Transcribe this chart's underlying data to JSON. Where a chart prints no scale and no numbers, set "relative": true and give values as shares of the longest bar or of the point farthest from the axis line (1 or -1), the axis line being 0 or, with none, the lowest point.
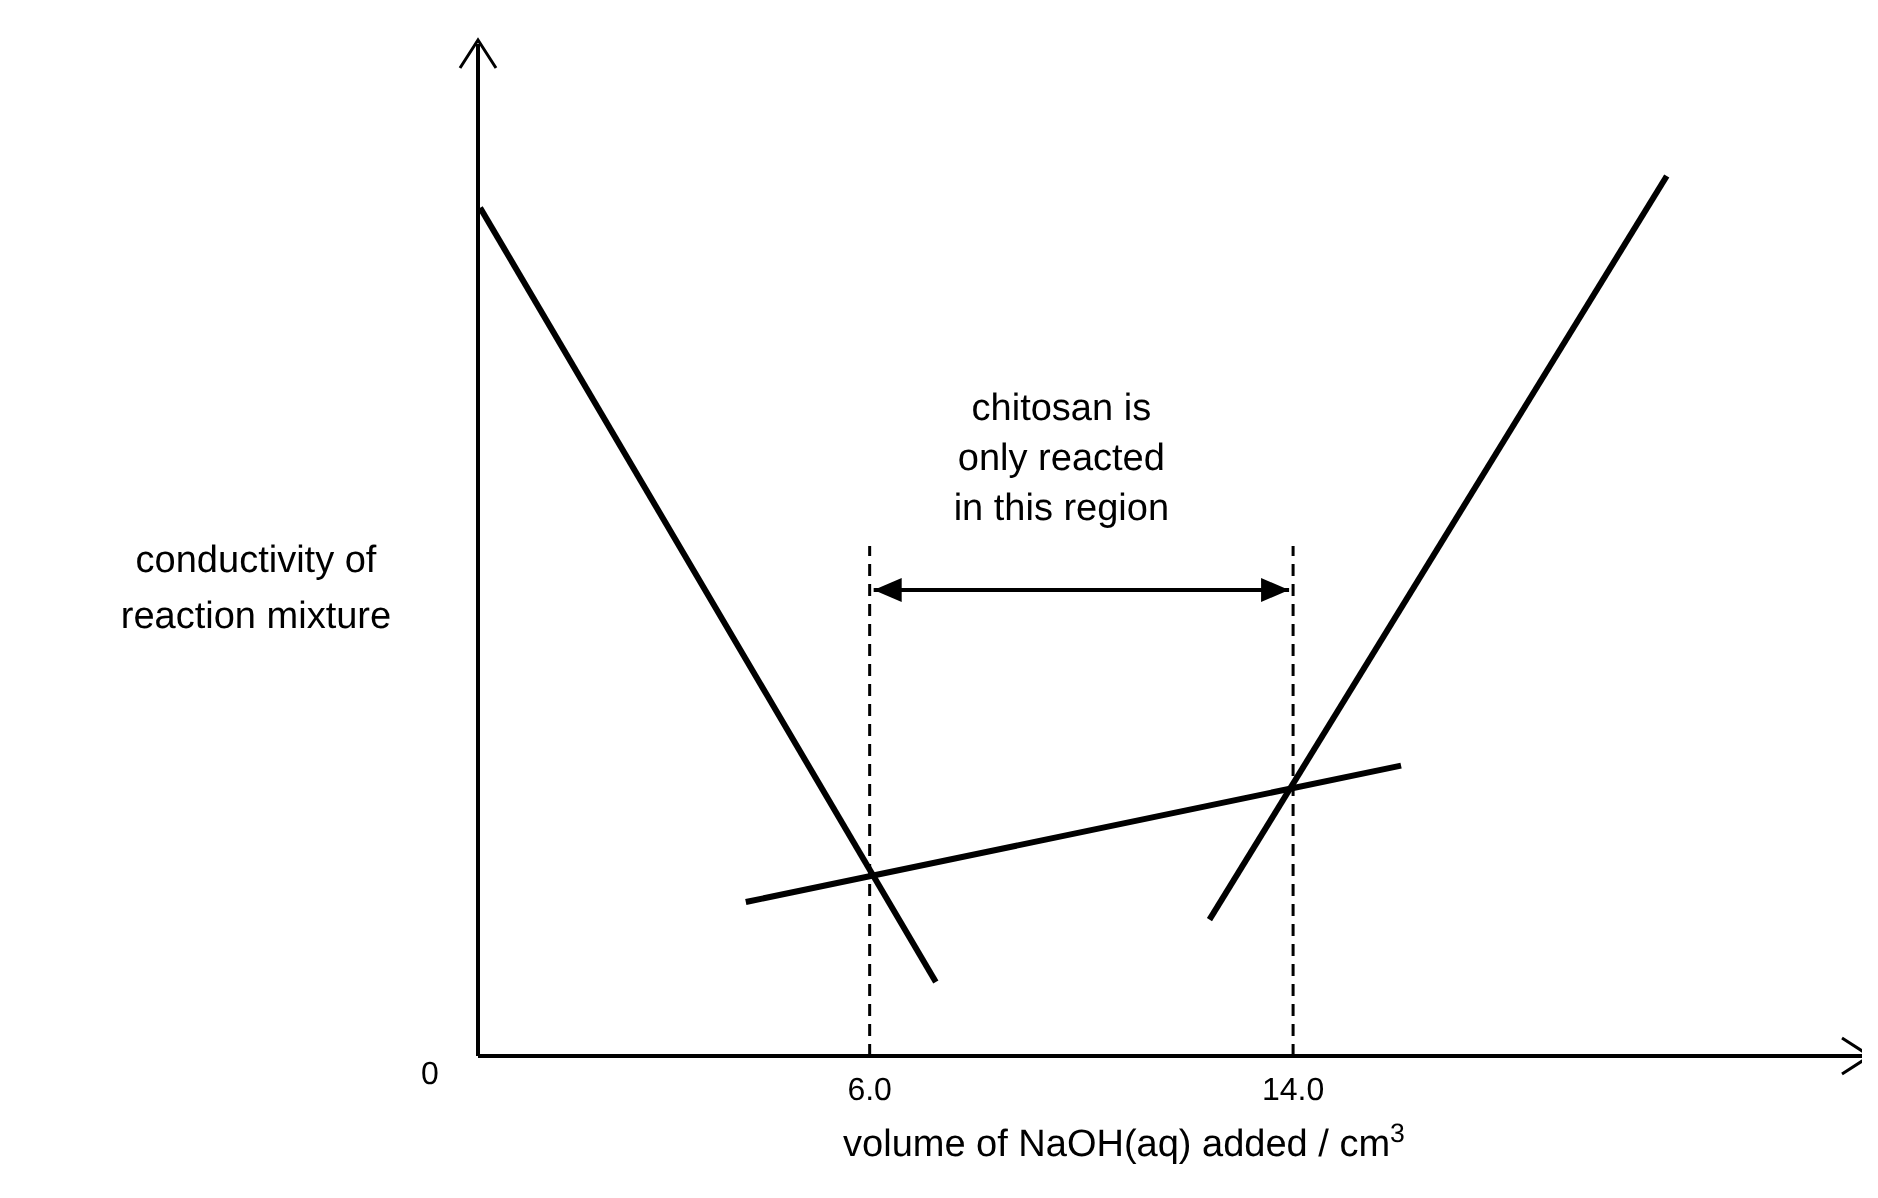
{
  "chart_data": {
    "type": "line",
    "relative": true,
    "xlabel": "volume of NaOH(aq) added / cm$^{3}$",
    "ylabel": "conductivity of\nreaction mixture",
    "xlim": [
      -1.4,
      24.9
    ],
    "xticks": [
      {
        "value": 6,
        "label": "6.0"
      },
      {
        "value": 14,
        "label": "14.0"
      }
    ],
    "grid": false,
    "line_style": "solid",
    "series": [
      {
        "color": "#000000",
        "x": [
          -1.36,
          7.25
        ],
        "values": [
          0.964,
          0.084
        ]
      },
      {
        "color": "#000000",
        "x": [
          3.66,
          16.04
        ],
        "values": [
          0.175,
          0.33
        ]
      },
      {
        "color": "#000000",
        "x": [
          12.42,
          21.06
        ],
        "values": [
          0.155,
          1
        ]
      }
    ],
    "ref_lines": [
      {
        "axis": "x",
        "value": 6,
        "line_style": "dashed",
        "color": "#000000"
      },
      {
        "axis": "x",
        "value": 14,
        "line_style": "dashed",
        "color": "#000000"
      }
    ],
    "annotations": [
      "0",
      "chitosan is\nonly reacted\nin this region"
    ]
  }
}
